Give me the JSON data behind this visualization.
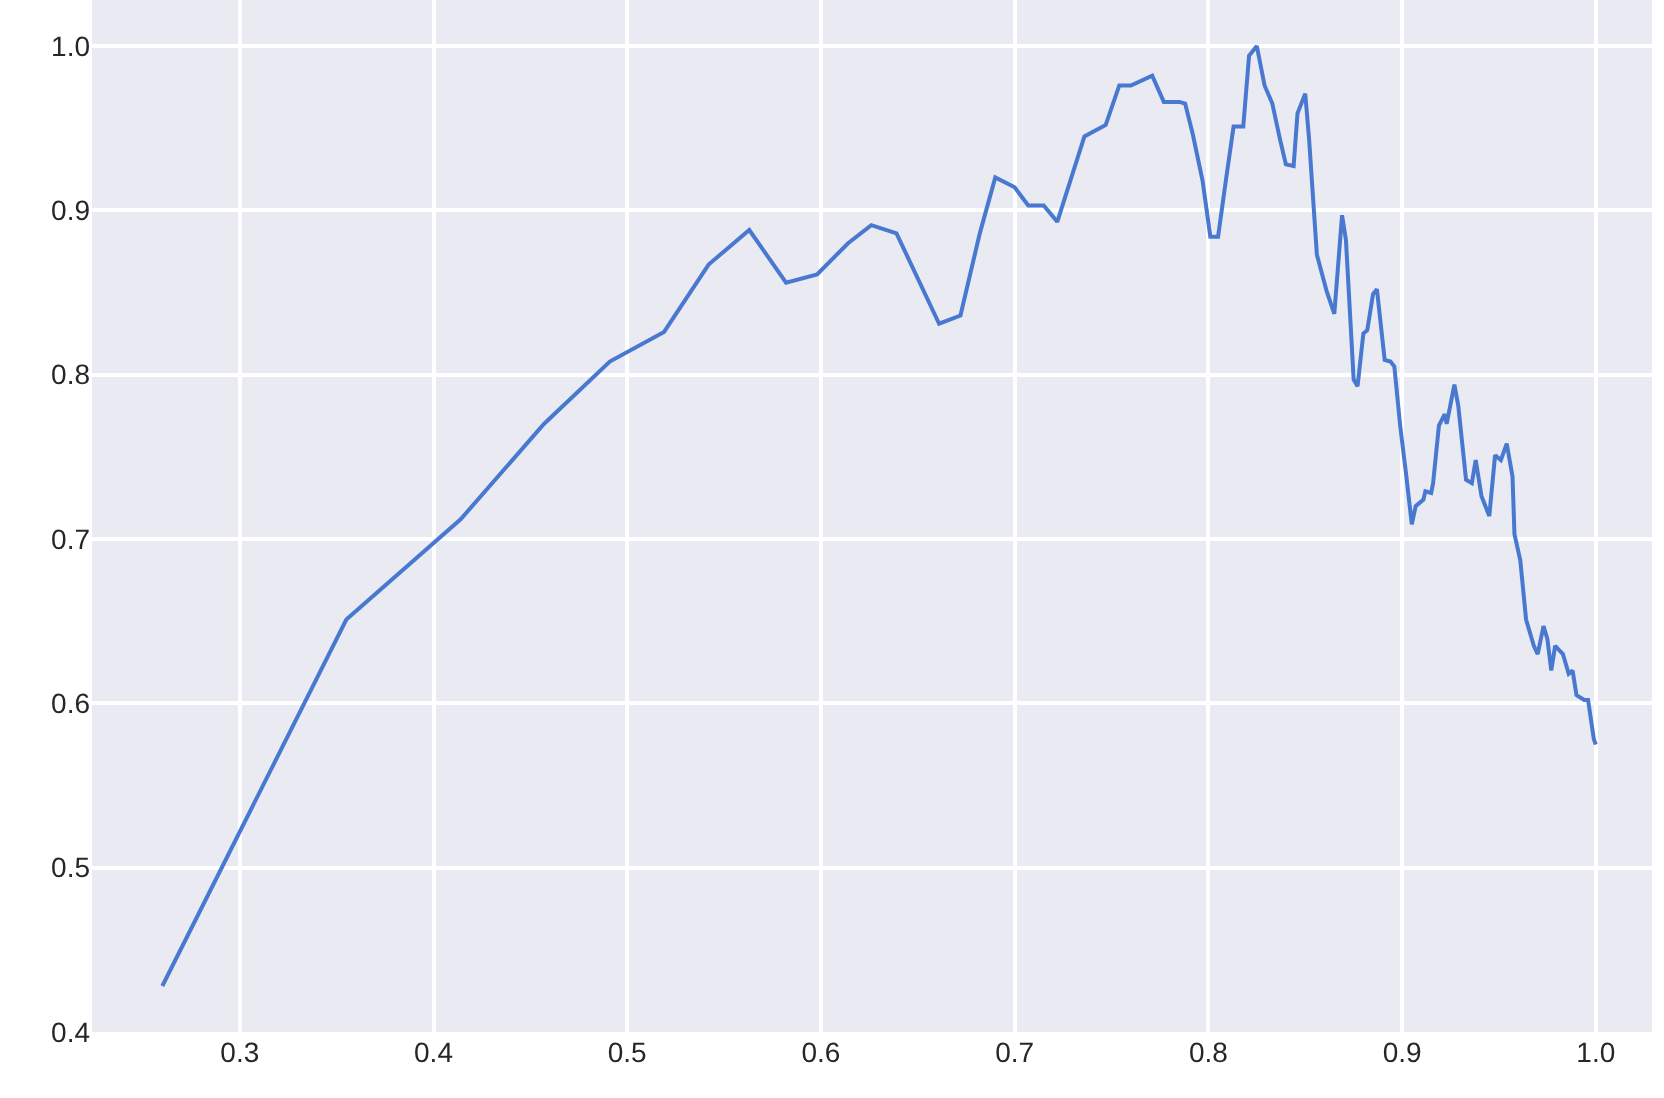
{
  "chart_data": {
    "type": "line",
    "grid": true,
    "x": [
      0.26,
      0.355,
      0.414,
      0.457,
      0.491,
      0.519,
      0.542,
      0.563,
      0.582,
      0.598,
      0.614,
      0.626,
      0.639,
      0.661,
      0.672,
      0.682,
      0.69,
      0.7,
      0.707,
      0.715,
      0.722,
      0.736,
      0.747,
      0.754,
      0.76,
      0.771,
      0.777,
      0.785,
      0.788,
      0.792,
      0.797,
      0.801,
      0.805,
      0.809,
      0.813,
      0.818,
      0.821,
      0.825,
      0.829,
      0.833,
      0.837,
      0.84,
      0.844,
      0.846,
      0.85,
      0.852,
      0.856,
      0.861,
      0.865,
      0.869,
      0.871,
      0.875,
      0.877,
      0.88,
      0.882,
      0.885,
      0.887,
      0.891,
      0.894,
      0.896,
      0.899,
      0.902,
      0.905,
      0.907,
      0.911,
      0.912,
      0.915,
      0.916,
      0.919,
      0.922,
      0.923,
      0.927,
      0.929,
      0.933,
      0.936,
      0.938,
      0.941,
      0.945,
      0.948,
      0.951,
      0.954,
      0.957,
      0.958,
      0.961,
      0.964,
      0.968,
      0.97,
      0.973,
      0.975,
      0.977,
      0.979,
      0.983,
      0.986,
      0.988,
      0.99,
      0.994,
      0.996,
      0.999,
      1.0
    ],
    "series": [
      {
        "color": "#4878d0",
        "values": [
          0.428,
          0.651,
          0.712,
          0.77,
          0.808,
          0.826,
          0.867,
          0.888,
          0.856,
          0.861,
          0.88,
          0.891,
          0.886,
          0.831,
          0.836,
          0.886,
          0.92,
          0.914,
          0.903,
          0.903,
          0.893,
          0.945,
          0.952,
          0.976,
          0.976,
          0.982,
          0.966,
          0.966,
          0.965,
          0.946,
          0.918,
          0.884,
          0.884,
          0.918,
          0.951,
          0.951,
          0.994,
          1.0,
          0.976,
          0.965,
          0.943,
          0.928,
          0.927,
          0.959,
          0.971,
          0.943,
          0.873,
          0.851,
          0.837,
          0.897,
          0.882,
          0.797,
          0.793,
          0.825,
          0.827,
          0.849,
          0.852,
          0.809,
          0.808,
          0.805,
          0.769,
          0.74,
          0.709,
          0.72,
          0.724,
          0.729,
          0.728,
          0.734,
          0.769,
          0.776,
          0.77,
          0.794,
          0.781,
          0.736,
          0.734,
          0.748,
          0.726,
          0.714,
          0.751,
          0.748,
          0.758,
          0.738,
          0.703,
          0.687,
          0.651,
          0.635,
          0.63,
          0.647,
          0.639,
          0.62,
          0.635,
          0.63,
          0.618,
          0.62,
          0.605,
          0.602,
          0.602,
          0.578,
          0.575
        ]
      }
    ],
    "xlim": [
      0.2237,
      1.029
    ],
    "ylim": [
      0.4,
      1.028
    ],
    "xticks": [
      0.3,
      0.4,
      0.5,
      0.6,
      0.7,
      0.8,
      0.9,
      {
        "value": 1,
        "label": "1.0"
      }
    ],
    "yticks": [
      0.4,
      0.5,
      0.6,
      0.7,
      0.8,
      0.9,
      {
        "value": 1,
        "label": "1.0"
      }
    ]
  }
}
